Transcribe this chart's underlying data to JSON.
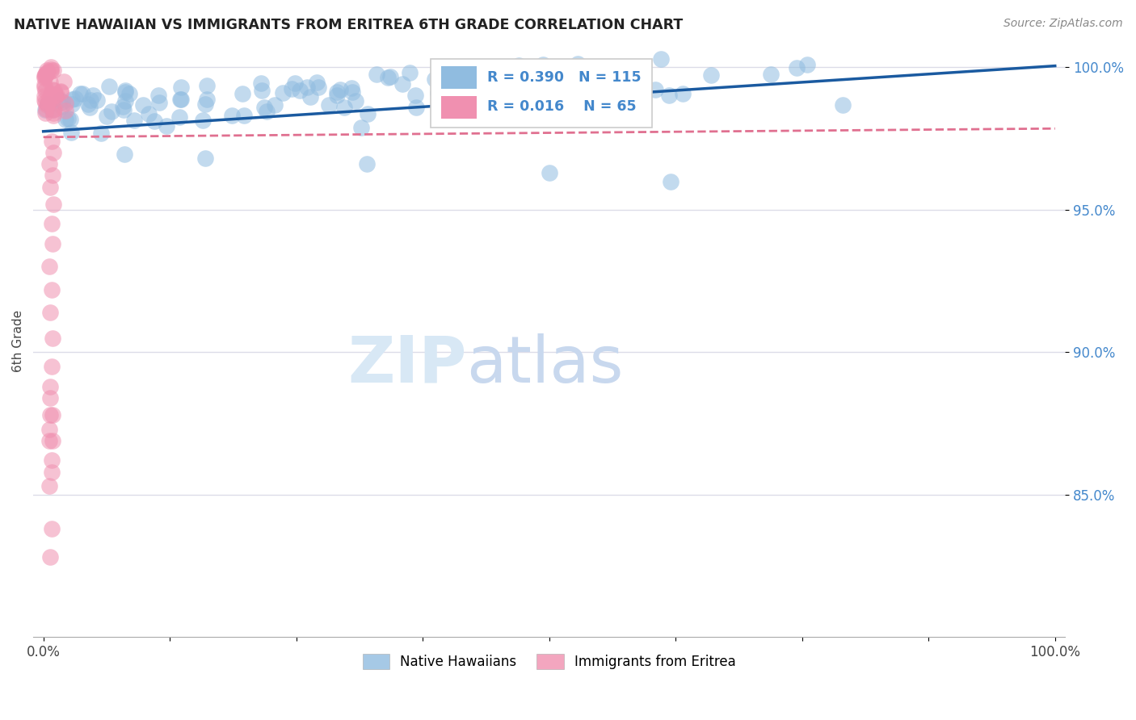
{
  "title": "NATIVE HAWAIIAN VS IMMIGRANTS FROM ERITREA 6TH GRADE CORRELATION CHART",
  "source": "Source: ZipAtlas.com",
  "ylabel": "6th Grade",
  "background_color": "#ffffff",
  "grid_color": "#dcdce8",
  "blue_color": "#90bce0",
  "pink_color": "#f090b0",
  "trend_blue_color": "#1a5aa0",
  "trend_pink_color": "#e07090",
  "legend_R_blue": "0.390",
  "legend_N_blue": "115",
  "legend_R_pink": "0.016",
  "legend_N_pink": "65",
  "ytick_color": "#4488cc",
  "ylim": [
    0.8,
    1.008
  ],
  "xlim": [
    -0.01,
    1.01
  ],
  "yticks": [
    0.85,
    0.9,
    0.95,
    1.0
  ],
  "ytick_labels": [
    "85.0%",
    "90.0%",
    "95.0%",
    "100.0%"
  ],
  "xtick_labels": [
    "0.0%",
    "",
    "",
    "",
    "",
    "",
    "",
    "",
    "100.0%"
  ],
  "watermark_color": "#d8e8f5",
  "blue_seed": 42,
  "pink_seed": 77
}
